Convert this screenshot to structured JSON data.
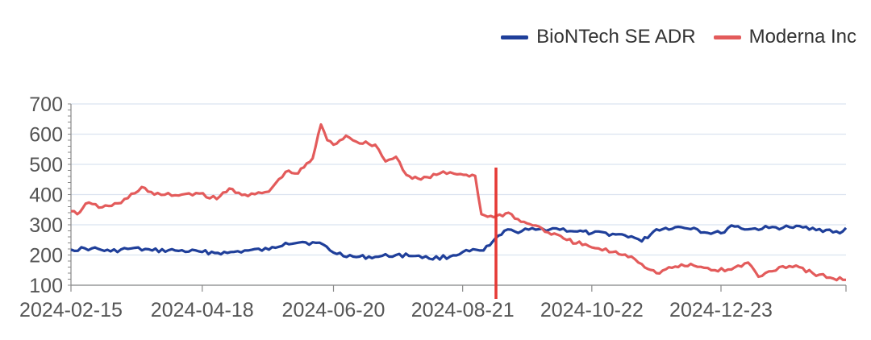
{
  "chart_data": {
    "type": "line",
    "title": "",
    "xlabel": "",
    "ylabel": "",
    "ylim": [
      100,
      700
    ],
    "yticks": [
      "100",
      "200",
      "300",
      "400",
      "500",
      "600",
      "700"
    ],
    "xticks": [
      "2024-02-15",
      "2024-04-18",
      "2024-06-20",
      "2024-08-21",
      "2024-10-22",
      "2024-12-23"
    ],
    "x_range": [
      "2024-02-15",
      "2025-02-21"
    ],
    "grid": "horizontal",
    "legend_position": "top-right",
    "marker_line": {
      "date": "2024-09-06",
      "color": "#e53935"
    },
    "series": [
      {
        "name": "BioNTech SE ADR",
        "color": "#1f3f9a",
        "points": [
          [
            "2024-02-15",
            218
          ],
          [
            "2024-02-25",
            222
          ],
          [
            "2024-03-05",
            212
          ],
          [
            "2024-03-15",
            222
          ],
          [
            "2024-03-25",
            215
          ],
          [
            "2024-04-05",
            215
          ],
          [
            "2024-04-18",
            210
          ],
          [
            "2024-04-30",
            207
          ],
          [
            "2024-05-10",
            215
          ],
          [
            "2024-05-20",
            218
          ],
          [
            "2024-05-28",
            240
          ],
          [
            "2024-06-05",
            243
          ],
          [
            "2024-06-15",
            235
          ],
          [
            "2024-06-20",
            208
          ],
          [
            "2024-07-01",
            193
          ],
          [
            "2024-07-10",
            194
          ],
          [
            "2024-07-20",
            200
          ],
          [
            "2024-07-31",
            198
          ],
          [
            "2024-08-05",
            188
          ],
          [
            "2024-08-15",
            195
          ],
          [
            "2024-08-21",
            210
          ],
          [
            "2024-08-31",
            215
          ],
          [
            "2024-09-03",
            232
          ],
          [
            "2024-09-10",
            280
          ],
          [
            "2024-09-15",
            278
          ],
          [
            "2024-09-25",
            284
          ],
          [
            "2024-10-05",
            288
          ],
          [
            "2024-10-15",
            278
          ],
          [
            "2024-10-22",
            272
          ],
          [
            "2024-11-01",
            270
          ],
          [
            "2024-11-10",
            262
          ],
          [
            "2024-11-15",
            245
          ],
          [
            "2024-11-22",
            285
          ],
          [
            "2024-12-01",
            292
          ],
          [
            "2024-12-10",
            290
          ],
          [
            "2024-12-15",
            275
          ],
          [
            "2024-12-23",
            272
          ],
          [
            "2024-12-28",
            298
          ],
          [
            "2025-01-05",
            285
          ],
          [
            "2025-01-15",
            290
          ],
          [
            "2025-01-25",
            292
          ],
          [
            "2025-02-05",
            290
          ],
          [
            "2025-02-18",
            272
          ],
          [
            "2025-02-21",
            290
          ]
        ]
      },
      {
        "name": "Moderna Inc",
        "color": "#e35b5b",
        "points": [
          [
            "2024-02-15",
            345
          ],
          [
            "2024-02-18",
            335
          ],
          [
            "2024-02-22",
            370
          ],
          [
            "2024-03-01",
            358
          ],
          [
            "2024-03-10",
            372
          ],
          [
            "2024-03-20",
            425
          ],
          [
            "2024-03-26",
            400
          ],
          [
            "2024-04-05",
            398
          ],
          [
            "2024-04-15",
            405
          ],
          [
            "2024-04-25",
            385
          ],
          [
            "2024-05-01",
            420
          ],
          [
            "2024-05-10",
            395
          ],
          [
            "2024-05-20",
            410
          ],
          [
            "2024-05-28",
            475
          ],
          [
            "2024-06-03",
            470
          ],
          [
            "2024-06-10",
            520
          ],
          [
            "2024-06-14",
            632
          ],
          [
            "2024-06-17",
            580
          ],
          [
            "2024-06-20",
            565
          ],
          [
            "2024-06-26",
            595
          ],
          [
            "2024-07-01",
            575
          ],
          [
            "2024-07-10",
            565
          ],
          [
            "2024-07-15",
            510
          ],
          [
            "2024-07-20",
            525
          ],
          [
            "2024-07-25",
            465
          ],
          [
            "2024-08-01",
            450
          ],
          [
            "2024-08-10",
            470
          ],
          [
            "2024-08-20",
            468
          ],
          [
            "2024-08-27",
            462
          ],
          [
            "2024-08-30",
            335
          ],
          [
            "2024-09-05",
            325
          ],
          [
            "2024-09-12",
            340
          ],
          [
            "2024-09-18",
            310
          ],
          [
            "2024-09-25",
            298
          ],
          [
            "2024-10-01",
            275
          ],
          [
            "2024-10-10",
            250
          ],
          [
            "2024-10-22",
            225
          ],
          [
            "2024-11-01",
            210
          ],
          [
            "2024-11-10",
            195
          ],
          [
            "2024-11-15",
            170
          ],
          [
            "2024-11-22",
            140
          ],
          [
            "2024-12-01",
            162
          ],
          [
            "2024-12-10",
            165
          ],
          [
            "2024-12-20",
            150
          ],
          [
            "2024-12-28",
            152
          ],
          [
            "2025-01-05",
            175
          ],
          [
            "2025-01-10",
            128
          ],
          [
            "2025-01-20",
            160
          ],
          [
            "2025-01-28",
            165
          ],
          [
            "2025-02-05",
            140
          ],
          [
            "2025-02-15",
            122
          ],
          [
            "2025-02-21",
            118
          ]
        ]
      }
    ]
  }
}
